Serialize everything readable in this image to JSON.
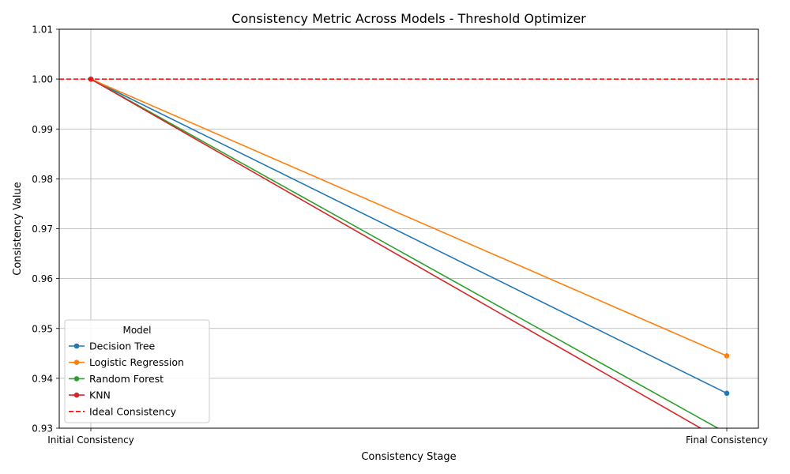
{
  "chart_data": {
    "type": "line",
    "title": "Consistency Metric Across Models - Threshold Optimizer",
    "xlabel": "Consistency Stage",
    "ylabel": "Consistency Value",
    "categories": [
      "Initial Consistency",
      "Final Consistency"
    ],
    "ylim": [
      0.93,
      1.01
    ],
    "yticks": [
      "0.93",
      "0.94",
      "0.95",
      "0.96",
      "0.97",
      "0.98",
      "0.99",
      "1.00",
      "1.01"
    ],
    "grid": true,
    "legend": {
      "title": "Model",
      "placement": "lower-left"
    },
    "series": [
      {
        "name": "Decision Tree",
        "values": [
          1.0,
          0.937
        ],
        "color": "#1f77b4"
      },
      {
        "name": "Logistic Regression",
        "values": [
          1.0,
          0.9445
        ],
        "color": "#ff7f0e"
      },
      {
        "name": "Random Forest",
        "values": [
          1.0,
          0.929
        ],
        "color": "#2ca02c"
      },
      {
        "name": "KNN",
        "values": [
          1.0,
          0.927
        ],
        "color": "#d62728"
      }
    ],
    "reference_line": {
      "name": "Ideal Consistency",
      "value": 1.0,
      "color": "#ff0000",
      "style": "dashed"
    }
  }
}
